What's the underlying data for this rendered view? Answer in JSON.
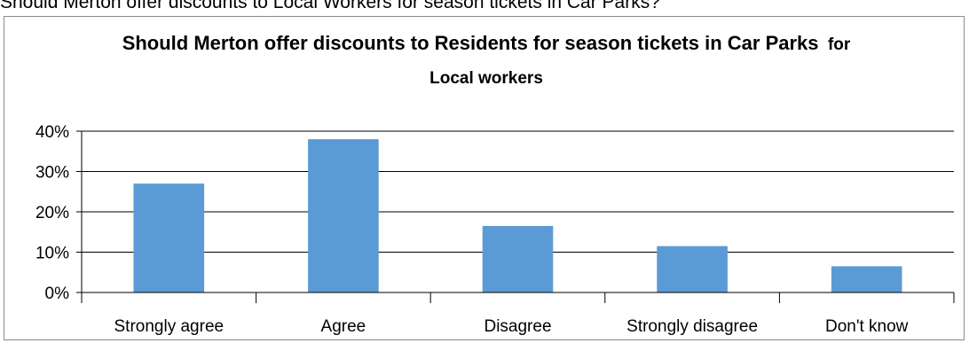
{
  "page": {
    "question": "Should Merton offer discounts to Local Workers for season tickets in Car Parks?"
  },
  "chart_data": {
    "type": "bar",
    "title_main": "Should Merton offer discounts to Residents for season tickets in Car Parks",
    "title_suffix": "for",
    "title_line2": "Local workers",
    "categories": [
      "Strongly agree",
      "Agree",
      "Disagree",
      "Strongly disagree",
      "Don't know"
    ],
    "values": [
      27,
      38,
      16.5,
      11.5,
      6.5
    ],
    "ylim": [
      0,
      40
    ],
    "yticks": [
      0,
      10,
      20,
      30,
      40
    ],
    "ytick_labels": [
      "0%",
      "10%",
      "20%",
      "30%",
      "40%"
    ],
    "xlabel": "",
    "ylabel": "",
    "grid": true,
    "legend": "none",
    "colors": {
      "bar": "#5b9bd5",
      "grid": "#000000",
      "text": "#000000"
    }
  }
}
